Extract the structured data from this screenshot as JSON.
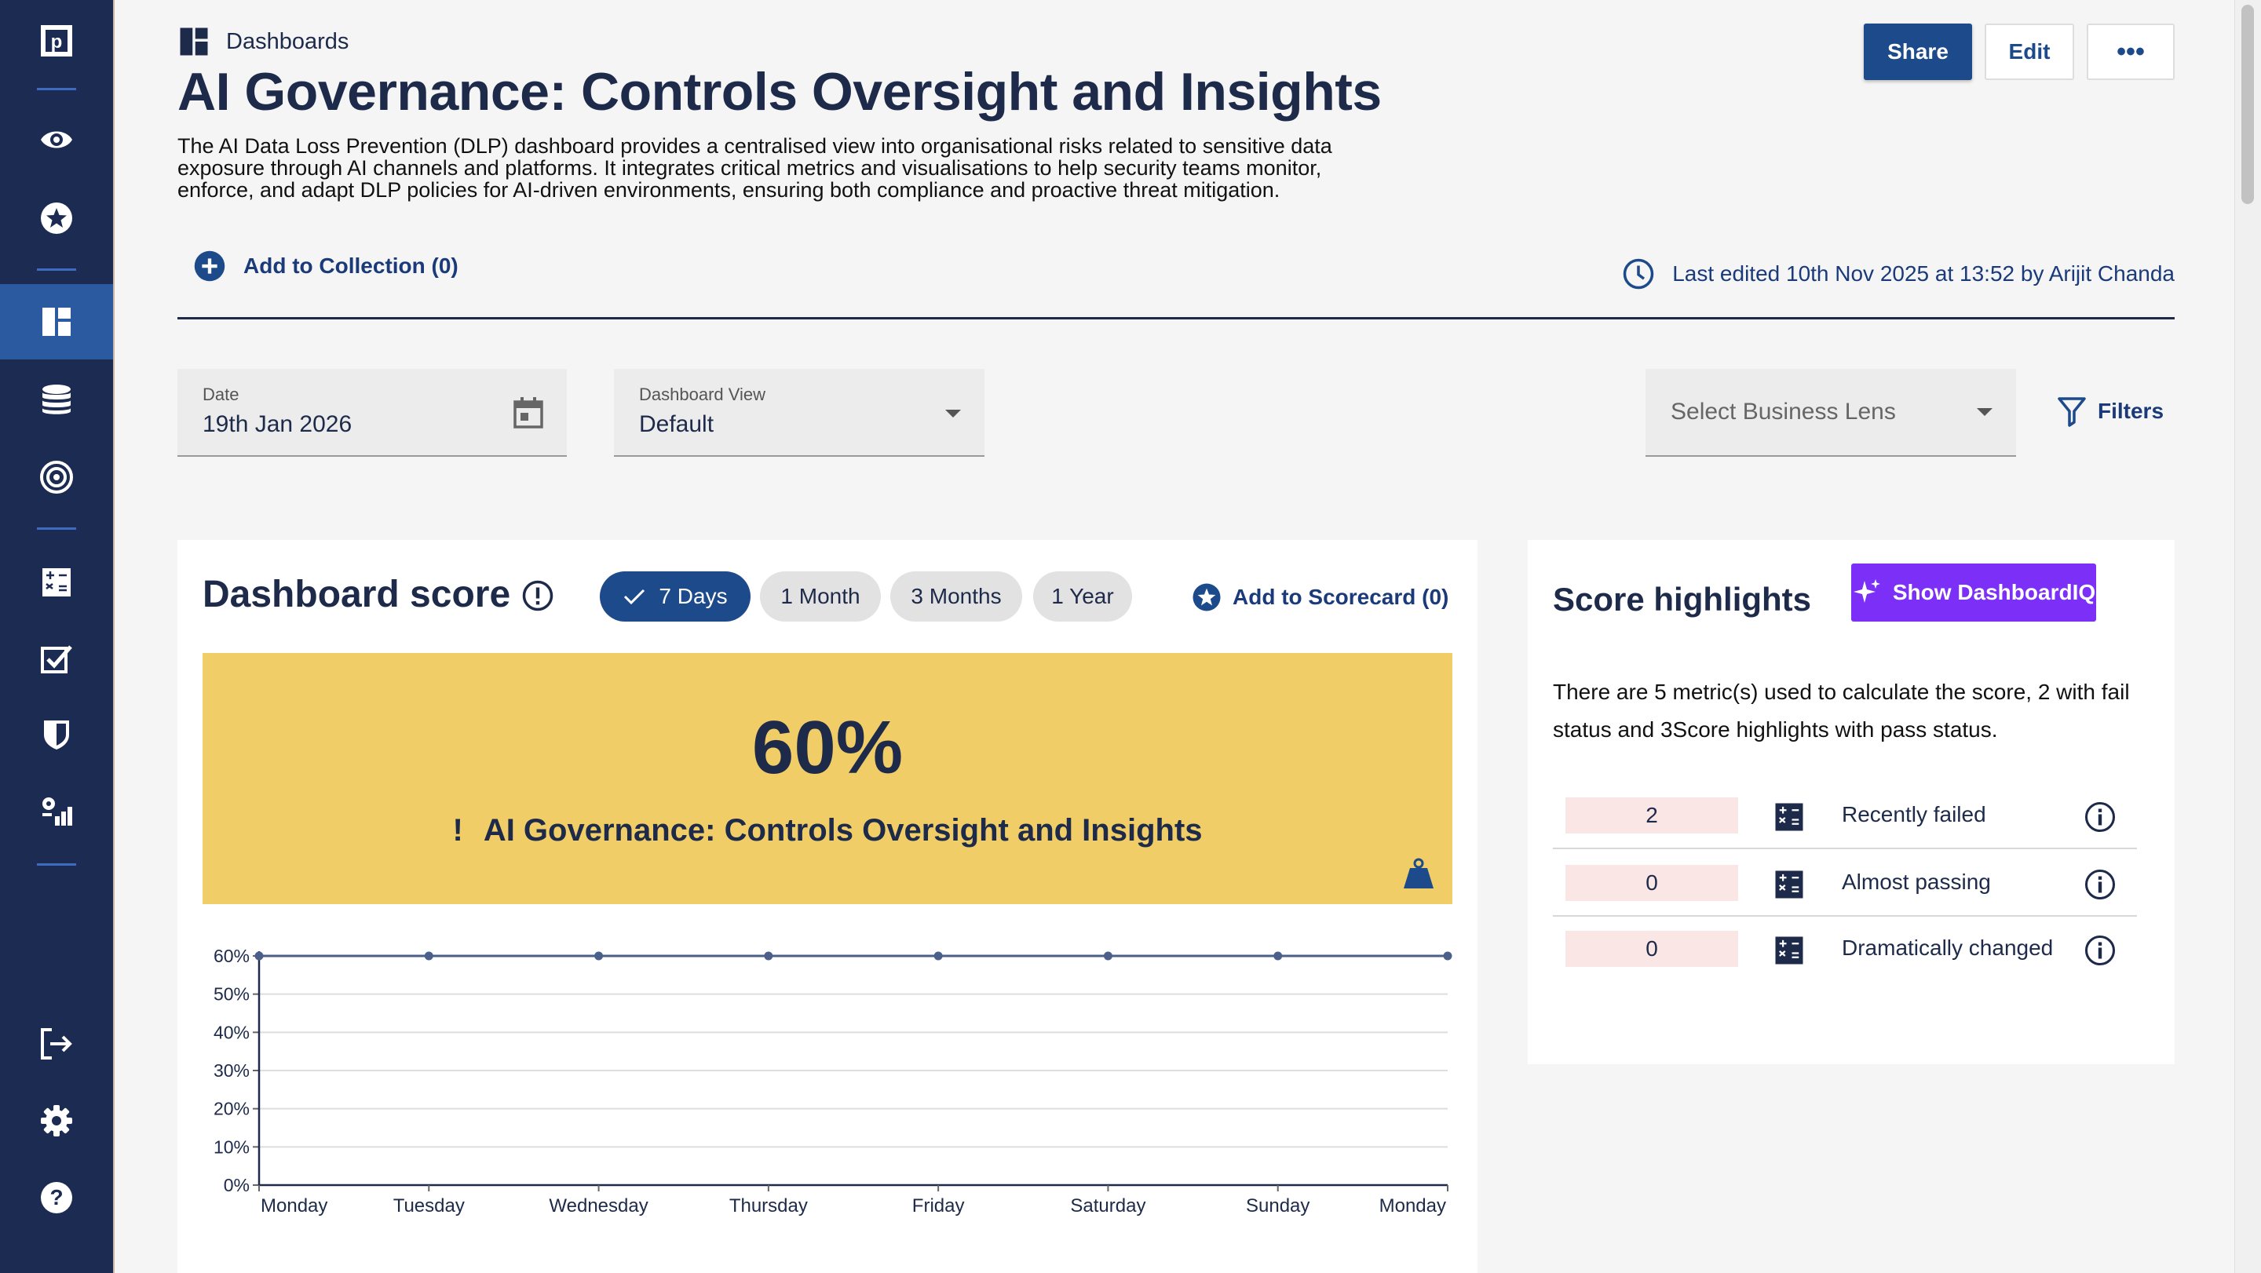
{
  "sidebar": {
    "items": [
      {
        "name": "logo",
        "icon": "logo-icon"
      },
      {
        "name": "watch",
        "icon": "eye-icon"
      },
      {
        "name": "favourites",
        "icon": "star-icon"
      },
      {
        "name": "dashboards",
        "icon": "dashboard-icon",
        "active": true
      },
      {
        "name": "data",
        "icon": "database-icon"
      },
      {
        "name": "targets",
        "icon": "target-icon"
      },
      {
        "name": "metrics",
        "icon": "calculator-icon"
      },
      {
        "name": "tasks",
        "icon": "checklist-icon"
      },
      {
        "name": "policies",
        "icon": "shield-icon"
      },
      {
        "name": "reports",
        "icon": "settings-chart-icon"
      },
      {
        "name": "logout",
        "icon": "logout-icon"
      },
      {
        "name": "settings",
        "icon": "gear-icon"
      },
      {
        "name": "help",
        "icon": "help-icon"
      }
    ]
  },
  "header": {
    "breadcrumb": "Dashboards",
    "title": "AI Governance: Controls Oversight and Insights",
    "description": "The AI Data Loss Prevention (DLP) dashboard provides a centralised view into organisational risks related to sensitive data exposure through AI channels and platforms. It integrates critical metrics and visualisations to help security teams monitor, enforce, and adapt DLP policies for AI-driven environments, ensuring both compliance and proactive threat mitigation.",
    "add_collection": "Add to Collection (0)",
    "last_edited": "Last edited 10th Nov 2025 at 13:52 by Arijit Chanda",
    "share": "Share",
    "edit": "Edit",
    "more": "•••"
  },
  "filters": {
    "date_label": "Date",
    "date_value": "19th Jan 2026",
    "view_label": "Dashboard View",
    "view_value": "Default",
    "lens_placeholder": "Select Business Lens",
    "filters_label": "Filters"
  },
  "score": {
    "title": "Dashboard score",
    "ranges": [
      "7 Days",
      "1 Month",
      "3 Months",
      "1 Year"
    ],
    "selected_range": "7 Days",
    "add_scorecard": "Add to Scorecard (0)",
    "value": "60%",
    "name": "AI Governance: Controls Oversight and Insights",
    "warn_glyph": "!",
    "banner_color": "#f0cd66"
  },
  "chart_data": {
    "type": "line",
    "categories": [
      "Monday",
      "Tuesday",
      "Wednesday",
      "Thursday",
      "Friday",
      "Saturday",
      "Sunday",
      "Monday"
    ],
    "series": [
      {
        "values": [
          60,
          60,
          60,
          60,
          60,
          60,
          60,
          60
        ]
      }
    ],
    "yticks": [
      "0%",
      "10%",
      "20%",
      "30%",
      "40%",
      "50%",
      "60%"
    ],
    "ylim": [
      0,
      60
    ],
    "grid": true,
    "color": "#4a5f8a"
  },
  "highlights": {
    "title": "Score highlights",
    "dashiq": "Show DashboardIQ",
    "description": "There are 5 metric(s) used to calculate the score, 2 with fail status and 3Score highlights with pass status.",
    "rows": [
      {
        "count": "2",
        "label": "Recently failed"
      },
      {
        "count": "0",
        "label": "Almost passing"
      },
      {
        "count": "0",
        "label": "Dramatically changed"
      }
    ]
  }
}
